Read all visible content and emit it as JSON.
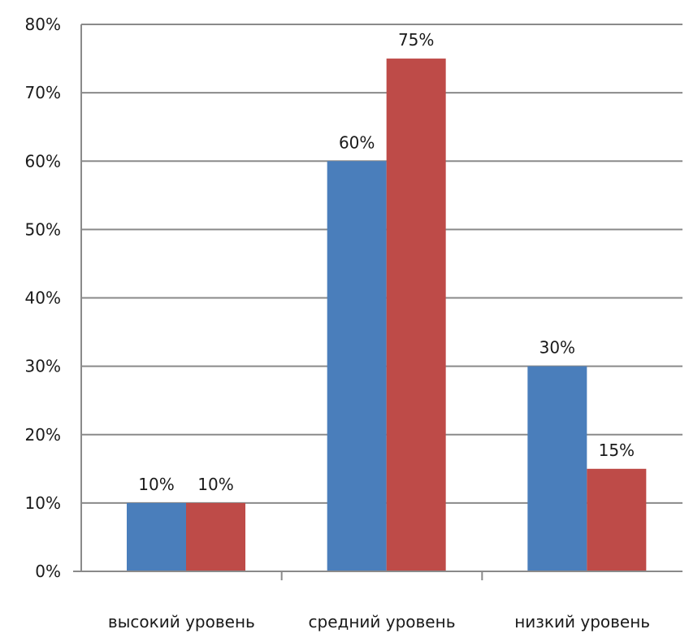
{
  "chart_data": {
    "type": "bar",
    "categories": [
      "высокий уровень",
      "средний уровень",
      "низкий уровень"
    ],
    "series": [
      {
        "values": [
          10,
          60,
          30
        ],
        "color": "#4a7ebb"
      },
      {
        "values": [
          10,
          75,
          15
        ],
        "color": "#be4b48"
      }
    ],
    "data_labels": [
      [
        "10%",
        "60%",
        "30%"
      ],
      [
        "10%",
        "75%",
        "15%"
      ]
    ],
    "y_ticks": [
      "0%",
      "10%",
      "20%",
      "30%",
      "40%",
      "50%",
      "60%",
      "70%",
      "80%"
    ],
    "ylim": [
      0,
      80
    ],
    "grid": true,
    "legend": "none"
  }
}
